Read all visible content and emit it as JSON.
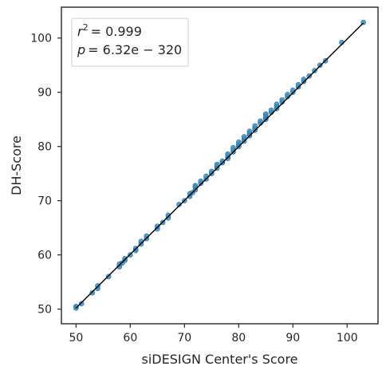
{
  "chart_data": {
    "type": "scatter",
    "title": "",
    "xlabel": "siDESIGN Center's Score",
    "ylabel": "DH-Score",
    "xlim": [
      47.3,
      105.7
    ],
    "ylim": [
      47.3,
      105.7
    ],
    "xticks": [
      50,
      60,
      70,
      80,
      90,
      100
    ],
    "yticks": [
      50,
      60,
      70,
      80,
      90,
      100
    ],
    "grid": false,
    "annotation": {
      "r2_label": "r",
      "r2_exponent": "2",
      "r2_value": "= 0.999",
      "p_label": "p",
      "p_value": "= 6.32e − 320",
      "placement": "top-left"
    },
    "colors": {
      "points": "#3b8ec0",
      "points_edge": "#2a6f9a",
      "fit_line": "#000000",
      "axes": "#262626"
    },
    "fit_line": {
      "x": [
        50,
        103
      ],
      "y": [
        50.2,
        102.8
      ]
    },
    "series": [
      {
        "x": [
          50,
          50,
          51,
          53,
          54,
          54,
          56,
          58,
          58,
          58.5,
          59,
          59,
          60,
          61,
          61,
          62,
          62,
          63,
          63,
          65,
          65,
          66,
          67,
          67,
          69,
          70,
          71,
          71,
          71.5,
          72,
          72,
          72,
          73,
          73,
          74,
          74,
          75,
          75,
          76,
          76,
          76,
          77,
          77,
          78,
          78,
          78,
          79,
          79,
          79,
          80,
          80,
          80,
          81,
          81,
          81,
          82,
          82,
          82,
          83,
          83,
          83,
          84,
          84,
          85,
          85,
          85,
          85,
          86,
          86,
          87,
          87,
          87,
          88,
          88,
          89,
          89,
          90,
          90,
          91,
          91,
          92,
          92,
          93,
          94,
          95,
          96,
          99,
          103
        ],
        "y": [
          50.2,
          50.5,
          51,
          53,
          53.8,
          54.3,
          56,
          57.8,
          58.3,
          58.5,
          59,
          59.3,
          60,
          60.8,
          61.2,
          62,
          62.5,
          63,
          63.5,
          64.8,
          65.3,
          66,
          66.8,
          67.3,
          69.3,
          70,
          70.8,
          71.3,
          71.5,
          72,
          72.5,
          72.8,
          73.2,
          73.6,
          74,
          74.5,
          75,
          75.4,
          76,
          76.4,
          76.7,
          77,
          77.3,
          77.8,
          78.2,
          78.6,
          79,
          79.4,
          79.8,
          80,
          80.4,
          80.8,
          81,
          81.4,
          81.8,
          82,
          82.4,
          82.8,
          83,
          83.4,
          83.8,
          84.3,
          84.7,
          85,
          85.3,
          85.7,
          86,
          86.3,
          86.7,
          87,
          87.4,
          87.8,
          88.2,
          88.6,
          89.2,
          89.6,
          90,
          90.4,
          91,
          91.4,
          92,
          92.4,
          93,
          94,
          95,
          95.8,
          99.2,
          102.9
        ]
      }
    ]
  }
}
